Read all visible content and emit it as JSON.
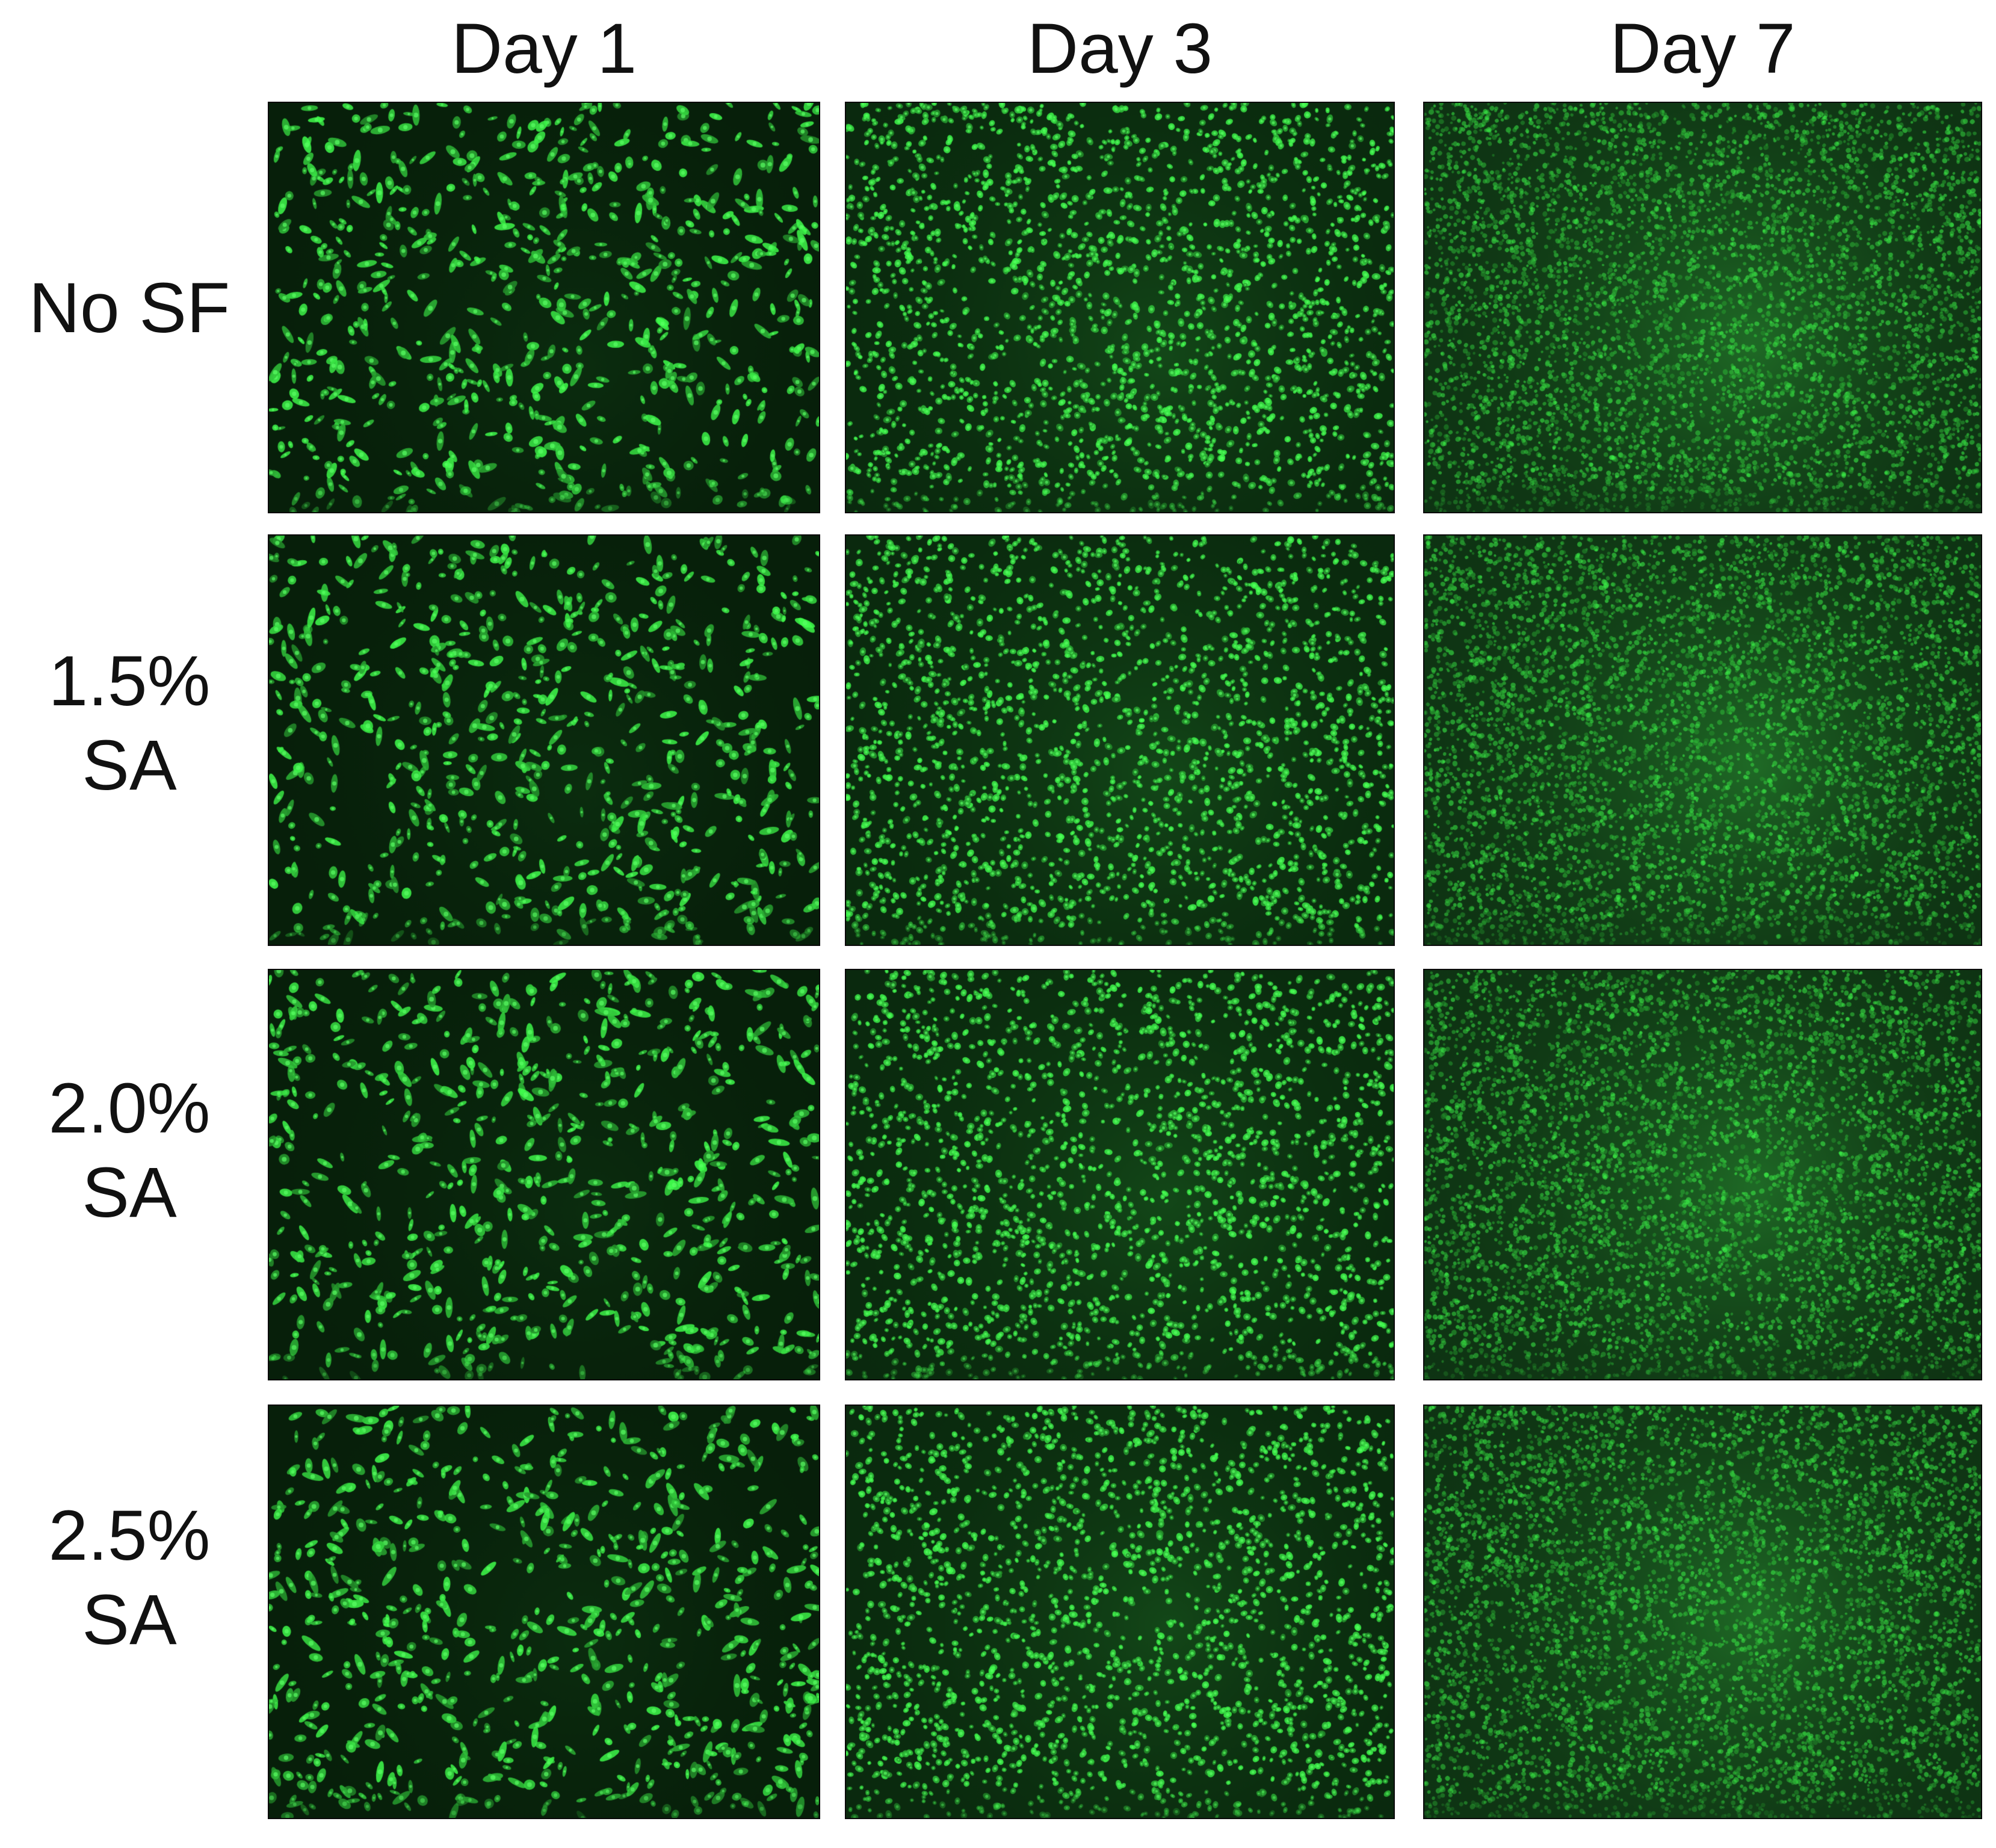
{
  "figure": {
    "columns": [
      {
        "label": "Day 1",
        "density": 0.22
      },
      {
        "label": "Day 3",
        "density": 0.55
      },
      {
        "label": "Day 7",
        "density": 1.0
      }
    ],
    "rows": [
      {
        "lines": [
          "No SF"
        ]
      },
      {
        "lines": [
          "1.5%",
          "SA"
        ]
      },
      {
        "lines": [
          "2.0%",
          "SA"
        ]
      },
      {
        "lines": [
          "2.5%",
          "SA"
        ]
      }
    ],
    "colors": {
      "background": "#ffffff",
      "cell_fluorescence": "#33ff4a",
      "panel_dark": "#08180a"
    }
  }
}
